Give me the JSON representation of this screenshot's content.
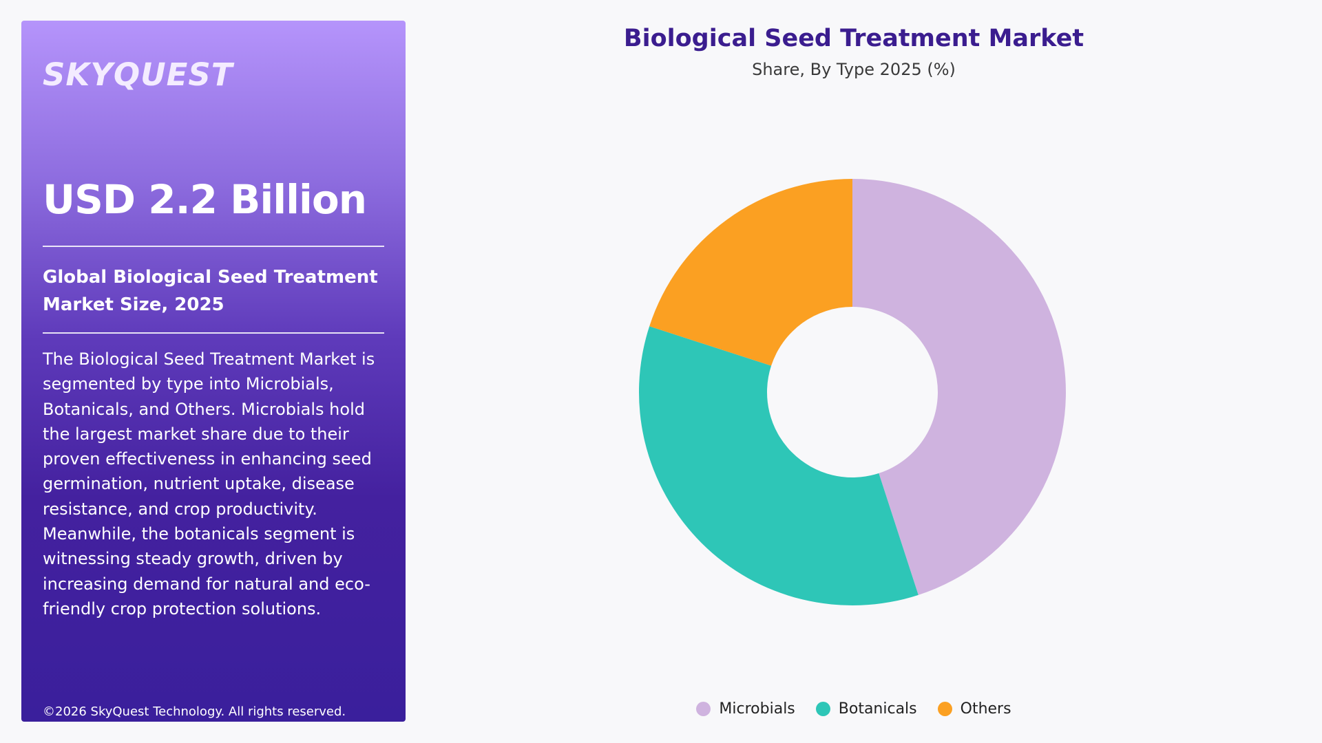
{
  "panel": {
    "logo": "SKYQUEST",
    "headline": "USD 2.2 Billion",
    "subhead_line1": "Global Biological Seed Treatment",
    "subhead_line2": "Market Size, 2025",
    "description": "The Biological Seed Treatment Market is segmented by type into Microbials, Botanicals, and Others. Microbials hold the largest market share due to their proven effectiveness in enhancing seed germination, nutrient uptake, disease resistance, and crop productivity. Meanwhile, the botanicals segment is witnessing steady growth, driven by increasing demand for natural and eco-friendly crop protection solutions.",
    "copyright": "©2026 SkyQuest Technology. All rights reserved."
  },
  "colors": {
    "panel_top": "#b594fb",
    "panel_bottom": "#3a1f9c",
    "title": "#3b1d8f",
    "microbials": "#cfb3df",
    "botanicals": "#2ec6b7",
    "others": "#fba022"
  },
  "chart_data": {
    "type": "pie",
    "title": "Biological Seed Treatment Market",
    "subtitle": "Share, By Type 2025 (%)",
    "donut": true,
    "legend_position": "bottom",
    "categories": [
      "Microbials",
      "Botanicals",
      "Others"
    ],
    "values": [
      45,
      35,
      20
    ],
    "colors": [
      "#cfb3df",
      "#2ec6b7",
      "#fba022"
    ]
  }
}
